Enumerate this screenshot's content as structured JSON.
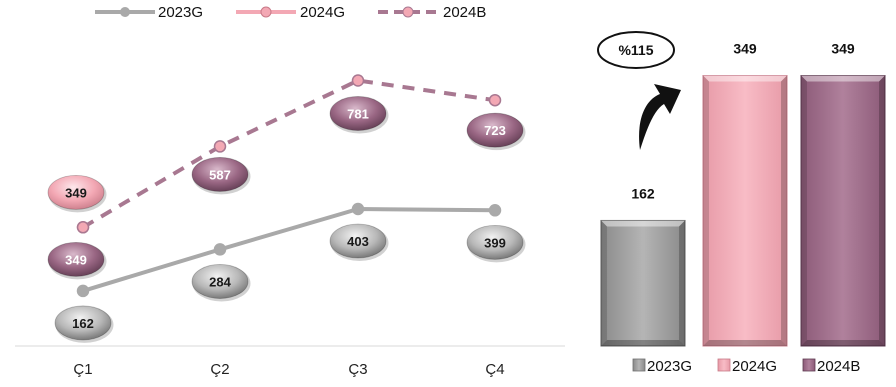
{
  "line_legend": [
    {
      "name": "2023G",
      "color": "#a9a9a9",
      "dash": false
    },
    {
      "name": "2024G",
      "color": "#f3a8b4",
      "dash": false
    },
    {
      "name": "2024B",
      "color": "#a87891",
      "dash": true
    }
  ],
  "bar_legend": [
    {
      "name": "2023G",
      "color": "#9e9e9e"
    },
    {
      "name": "2024G",
      "color": "#f4a7b3"
    },
    {
      "name": "2024B",
      "color": "#a06d8d"
    }
  ],
  "growth_badge": "%115",
  "colors": {
    "gray": "#a9a9a9",
    "pink": "#f3a8b4",
    "mauve": "#a87891",
    "arrow": "#111111"
  },
  "chart_data": [
    {
      "type": "line",
      "categories": [
        "Ç1",
        "Ç2",
        "Ç3",
        "Ç4"
      ],
      "series": [
        {
          "name": "2023G",
          "values": [
            162,
            284,
            403,
            399
          ],
          "labels": [
            "162",
            "284",
            "403",
            "399"
          ]
        },
        {
          "name": "2024G",
          "values": [
            349,
            null,
            null,
            null
          ],
          "labels": [
            "349",
            "",
            "",
            ""
          ]
        },
        {
          "name": "2024B",
          "values": [
            349,
            587,
            781,
            723
          ],
          "labels": [
            "349",
            "587",
            "781",
            "723"
          ]
        }
      ],
      "ylim": [
        0,
        900
      ],
      "grid": false,
      "legend": "top"
    },
    {
      "type": "bar",
      "categories": [
        "2023G",
        "2024G",
        "2024B"
      ],
      "values": [
        162,
        349,
        349
      ],
      "labels": [
        "162",
        "349",
        "349"
      ],
      "ylim": [
        0,
        400
      ],
      "legend": "bottom"
    }
  ]
}
